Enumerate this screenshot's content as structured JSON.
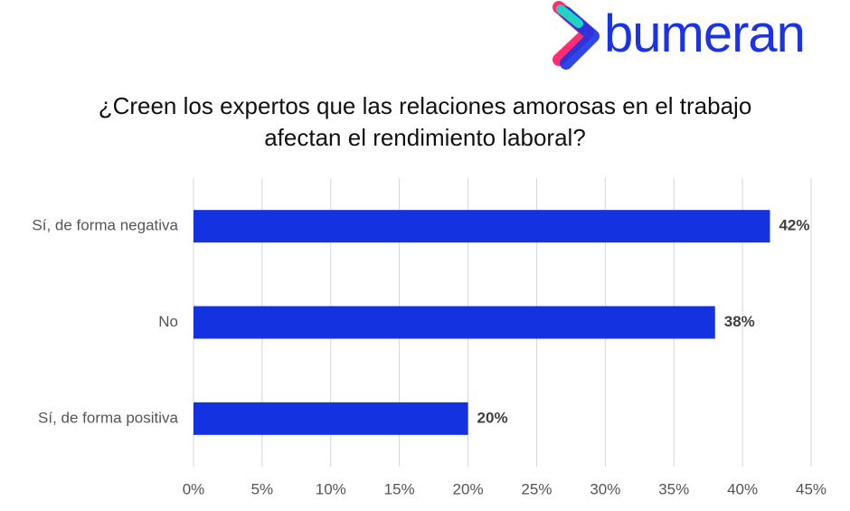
{
  "logo": "bumeran",
  "chart_data": {
    "type": "bar",
    "orientation": "horizontal",
    "title": "¿Creen los expertos que las relaciones amorosas en el trabajo afectan el rendimiento laboral?",
    "categories": [
      "Sí, de forma negativa",
      "No",
      "Sí, de forma positiva"
    ],
    "values": [
      42,
      38,
      20
    ],
    "value_labels": [
      "42%",
      "38%",
      "20%"
    ],
    "color": "#1432e0",
    "xlim": [
      0,
      45
    ],
    "xticks": [
      {
        "value": 0,
        "label": "0%"
      },
      {
        "value": 5,
        "label": "5%"
      },
      {
        "value": 10,
        "label": "10%"
      },
      {
        "value": 15,
        "label": "15%"
      },
      {
        "value": 20,
        "label": "20%"
      },
      {
        "value": 25,
        "label": "25%"
      },
      {
        "value": 30,
        "label": "30%"
      },
      {
        "value": 35,
        "label": "35%"
      },
      {
        "value": 40,
        "label": "40%"
      },
      {
        "value": 45,
        "label": "45%"
      }
    ],
    "grid": true
  }
}
